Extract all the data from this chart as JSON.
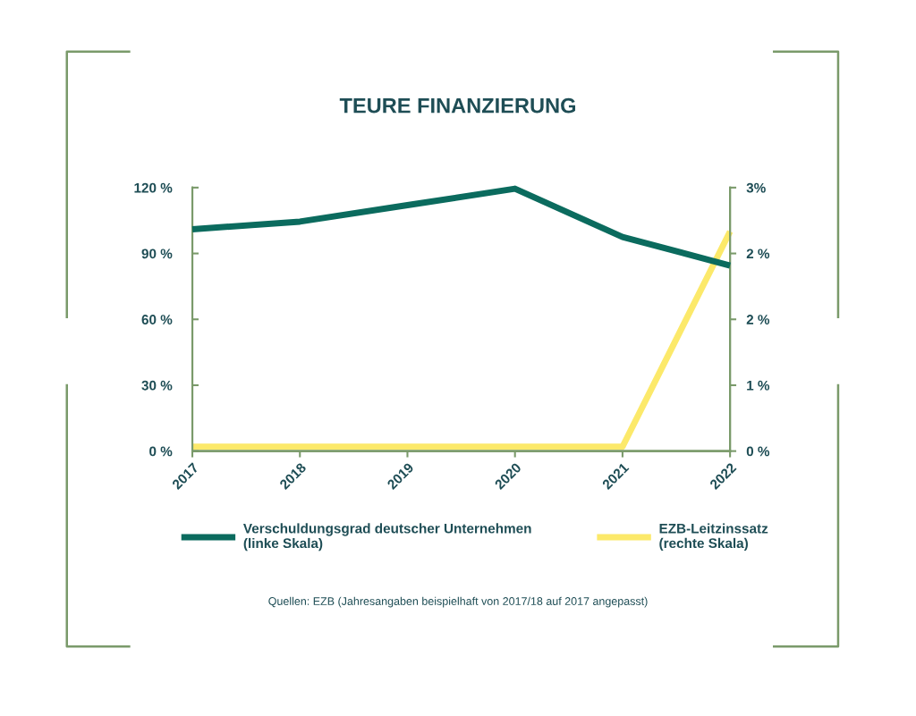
{
  "chart_data": {
    "type": "line",
    "title": "TEURE FINANZIERUNG",
    "categories": [
      "2017",
      "2018",
      "2019",
      "2020",
      "2021",
      "2022"
    ],
    "series": [
      {
        "name": "Verschuldungsgrad deutscher Unternehmen\n(linke Skala)",
        "color": "#0b6b5e",
        "values": [
          101,
          104.5,
          112,
          119.5,
          97.5,
          84.5
        ]
      },
      {
        "name": "EZB-Leitzinssatz\n(rechte Skala)",
        "color": "#fce96a",
        "axis": "y2",
        "values": [
          0.05,
          0.05,
          0.05,
          0.05,
          0.05,
          2.5
        ]
      }
    ],
    "ylim": [
      0,
      120
    ],
    "yticks": [
      {
        "value": 0,
        "label": "0 %"
      },
      {
        "value": 30,
        "label": "30 %"
      },
      {
        "value": 60,
        "label": "60 %"
      },
      {
        "value": 90,
        "label": "90 %"
      },
      {
        "value": 120,
        "label": "120 %"
      }
    ],
    "y2lim": [
      0,
      3
    ],
    "y2ticks": [
      {
        "value": 0,
        "label": "0 %"
      },
      {
        "value": 0.75,
        "label": "1 %"
      },
      {
        "value": 1.5,
        "label": "2 %"
      },
      {
        "value": 2.25,
        "label": "2 %"
      },
      {
        "value": 3,
        "label": "3%"
      }
    ],
    "grid": false,
    "legend": "bottom",
    "line_style": "solid",
    "marker": "none",
    "annotations": [
      "Quellen: EZB (Jahresangaben beispielhaft von 2017/18 auf 2017 angepasst)"
    ]
  }
}
